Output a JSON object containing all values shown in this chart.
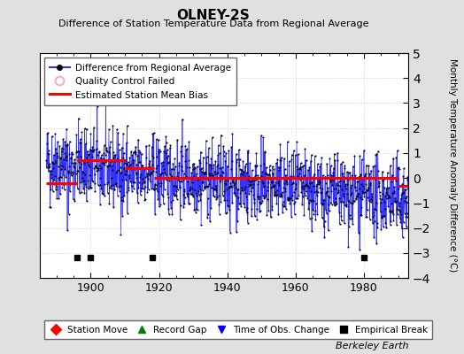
{
  "title": "OLNEY-2S",
  "subtitle": "Difference of Station Temperature Data from Regional Average",
  "ylabel": "Monthly Temperature Anomaly Difference (°C)",
  "xlabel_years": [
    1900,
    1920,
    1940,
    1960,
    1980
  ],
  "xlim": [
    1885,
    1993
  ],
  "ylim": [
    -4,
    5
  ],
  "yticks": [
    -4,
    -3,
    -2,
    -1,
    0,
    1,
    2,
    3,
    4,
    5
  ],
  "bg_color": "#e8e8e8",
  "plot_bg_color": "#ffffff",
  "line_color": "#3333ff",
  "dot_color": "#000000",
  "bias_color": "#ff0000",
  "seed": 42,
  "start_year": 1887,
  "end_year": 1992,
  "bias_segments": [
    {
      "start": 1887.0,
      "end": 1896.0,
      "value": -0.22
    },
    {
      "start": 1896.0,
      "end": 1910.0,
      "value": 0.72
    },
    {
      "start": 1910.0,
      "end": 1918.5,
      "value": 0.38
    },
    {
      "start": 1918.5,
      "end": 1990.0,
      "value": 0.02
    },
    {
      "start": 1990.0,
      "end": 1993.0,
      "value": -0.33
    }
  ],
  "empirical_breaks": [
    1896,
    1900,
    1918,
    1980
  ],
  "watermark": "Berkeley Earth",
  "legend1_labels": [
    "Difference from Regional Average",
    "Quality Control Failed",
    "Estimated Station Mean Bias"
  ],
  "legend2_labels": [
    "Station Move",
    "Record Gap",
    "Time of Obs. Change",
    "Empirical Break"
  ]
}
